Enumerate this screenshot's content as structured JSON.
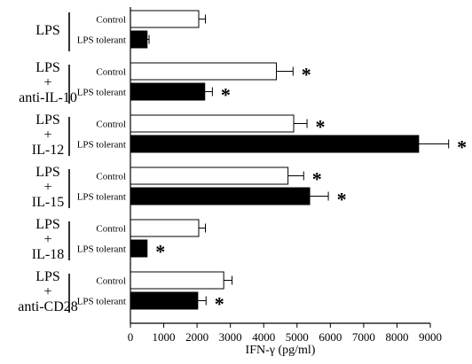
{
  "chart_data": {
    "type": "bar",
    "orientation": "horizontal",
    "xlabel": "IFN-γ (pg/ml)",
    "xlim": [
      0,
      9000
    ],
    "x_ticks": [
      0,
      1000,
      2000,
      3000,
      4000,
      5000,
      6000,
      7000,
      8000,
      9000
    ],
    "x_tick_labels": [
      "0",
      "1000",
      "2000",
      "3000",
      "4000",
      "5000",
      "6000",
      "7000",
      "8000",
      "9000"
    ],
    "grid": false,
    "series": [
      {
        "name": "Control",
        "color": "#ffffff"
      },
      {
        "name": "LPS tolerant",
        "color": "#000000"
      }
    ],
    "groups": [
      {
        "label_lines": [
          "LPS"
        ],
        "bars": [
          {
            "label": "Control",
            "value": 2050,
            "error": 200,
            "significant": false
          },
          {
            "label": "LPS tolerant",
            "value": 500,
            "error": 60,
            "significant": false
          }
        ]
      },
      {
        "label_lines": [
          "LPS",
          "+",
          "anti-IL-10"
        ],
        "bars": [
          {
            "label": "Control",
            "value": 4380,
            "error": 500,
            "significant": true
          },
          {
            "label": "LPS tolerant",
            "value": 2230,
            "error": 230,
            "significant": true
          }
        ]
      },
      {
        "label_lines": [
          "LPS",
          "+",
          "IL-12"
        ],
        "bars": [
          {
            "label": "Control",
            "value": 4900,
            "error": 400,
            "significant": true
          },
          {
            "label": "LPS tolerant",
            "value": 8650,
            "error": 900,
            "significant": true
          }
        ]
      },
      {
        "label_lines": [
          "LPS",
          "+",
          "IL-15"
        ],
        "bars": [
          {
            "label": "Control",
            "value": 4730,
            "error": 470,
            "significant": true
          },
          {
            "label": "LPS tolerant",
            "value": 5380,
            "error": 560,
            "significant": true
          }
        ]
      },
      {
        "label_lines": [
          "LPS",
          "+",
          "IL-18"
        ],
        "bars": [
          {
            "label": "Control",
            "value": 2050,
            "error": 200,
            "significant": false
          },
          {
            "label": "LPS tolerant",
            "value": 500,
            "error": 0,
            "significant": true
          }
        ]
      },
      {
        "label_lines": [
          "LPS",
          "+",
          "anti-CD28"
        ],
        "bars": [
          {
            "label": "Control",
            "value": 2800,
            "error": 250,
            "significant": false
          },
          {
            "label": "LPS tolerant",
            "value": 2020,
            "error": 250,
            "significant": true
          }
        ]
      }
    ],
    "significance_marker": "*"
  }
}
